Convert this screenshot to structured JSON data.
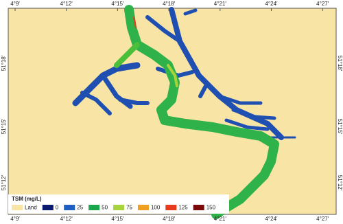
{
  "map": {
    "lon_labels": [
      "4°9′",
      "4°12′",
      "4°15′",
      "4°18′",
      "4°21′",
      "4°24′",
      "4°27′"
    ],
    "lat_labels": [
      "51°18′",
      "51°15′",
      "51°12′"
    ],
    "legend": {
      "title": "TSM (mg/L)",
      "items": [
        {
          "label": "Land",
          "color": "#f8e4a4"
        },
        {
          "label": "0",
          "color": "#0a1a6e"
        },
        {
          "label": "25",
          "color": "#1f5fc4"
        },
        {
          "label": "50",
          "color": "#1aa64a"
        },
        {
          "label": "75",
          "color": "#a6d43a"
        },
        {
          "label": "100",
          "color": "#f0a020"
        },
        {
          "label": "125",
          "color": "#e83a1e"
        },
        {
          "label": "150",
          "color": "#7a0a0a"
        }
      ]
    }
  }
}
